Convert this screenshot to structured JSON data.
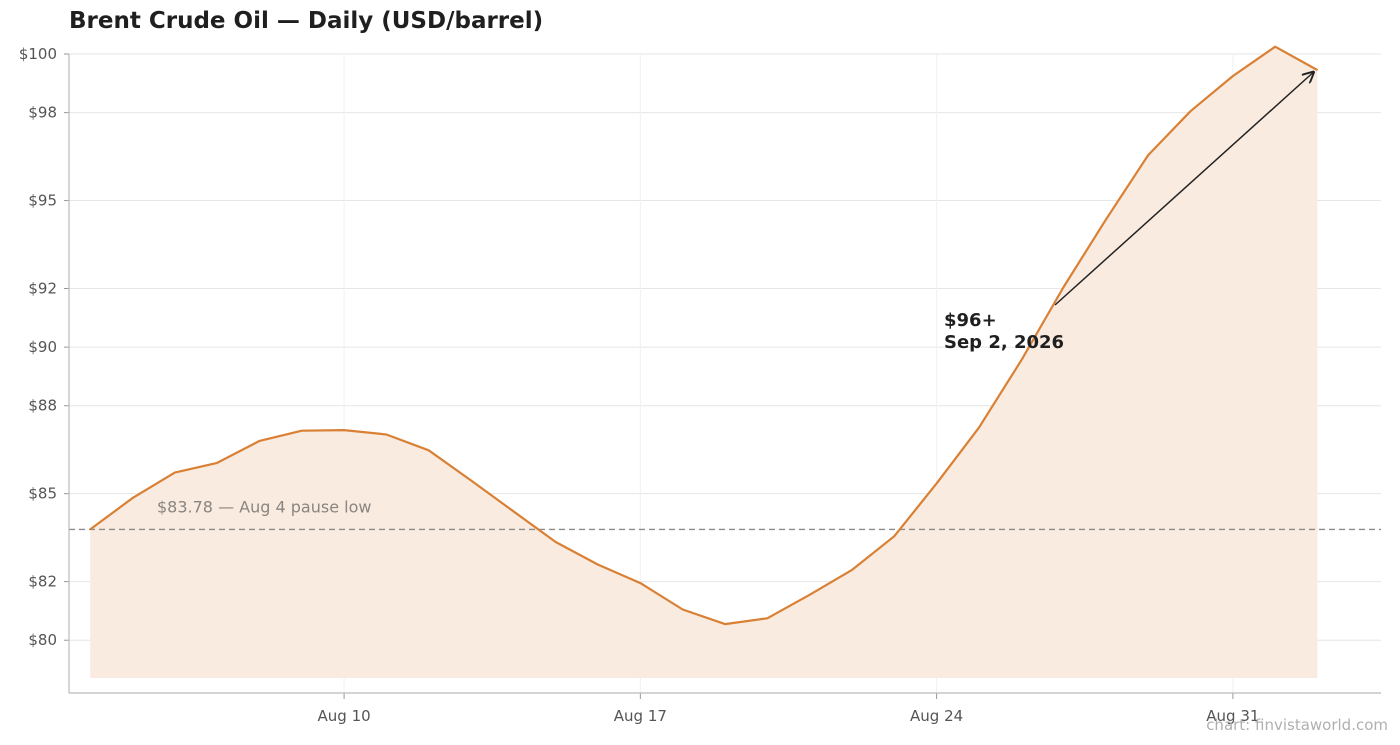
{
  "chart_data": {
    "type": "area",
    "title": "Brent Crude Oil — Daily (USD/barrel)",
    "xlabel": "",
    "ylabel": "",
    "x": [
      "2026-08-04",
      "2026-08-05",
      "2026-08-06",
      "2026-08-07",
      "2026-08-08",
      "2026-08-09",
      "2026-08-10",
      "2026-08-11",
      "2026-08-12",
      "2026-08-13",
      "2026-08-14",
      "2026-08-15",
      "2026-08-16",
      "2026-08-17",
      "2026-08-18",
      "2026-08-19",
      "2026-08-20",
      "2026-08-21",
      "2026-08-22",
      "2026-08-23",
      "2026-08-24",
      "2026-08-25",
      "2026-08-26",
      "2026-08-27",
      "2026-08-28",
      "2026-08-29",
      "2026-08-30",
      "2026-08-31",
      "2026-09-01",
      "2026-09-02"
    ],
    "series": [
      {
        "values": [
          83.78,
          84.85,
          85.72,
          86.05,
          86.8,
          87.15,
          87.17,
          87.02,
          86.48,
          85.45,
          84.4,
          83.35,
          82.58,
          81.95,
          81.05,
          80.55,
          80.75,
          81.55,
          82.4,
          83.55,
          85.35,
          87.25,
          89.55,
          92.05,
          94.35,
          96.55,
          98.05,
          99.25,
          100.25,
          99.45
        ]
      }
    ],
    "ylim": [
      78.2,
      100
    ],
    "y_ticks": [
      "$80",
      "$82",
      "$85",
      "$88",
      "$90",
      "$92",
      "$95",
      "$98",
      "$100"
    ],
    "x_ticks": [
      "Aug 10",
      "Aug 17",
      "Aug 24",
      "Aug 31"
    ],
    "reference_line": {
      "value": 83.78,
      "label": "$83.78 — Aug 4 pause low"
    },
    "annotation": {
      "line1": "$96+",
      "line2": "Sep 2, 2026"
    },
    "grid": true,
    "colors": {
      "line": "#d98034",
      "fill": "#f9ebe0",
      "reference": "#8c8c8c",
      "grid": "#e6e6e6"
    }
  },
  "credit": "chart: finvistaworld.com"
}
